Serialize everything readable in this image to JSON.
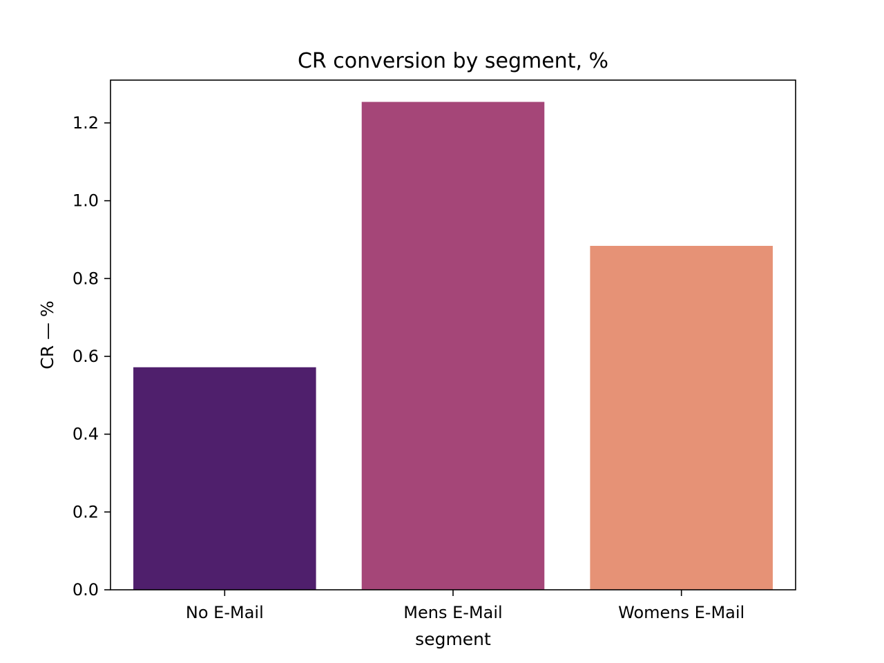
{
  "chart_data": {
    "type": "bar",
    "title": "CR conversion by segment, %",
    "xlabel": "segment",
    "ylabel": "CR — %",
    "categories": [
      "No E-Mail",
      "Mens E-Mail",
      "Womens E-Mail"
    ],
    "values": [
      0.572,
      1.254,
      0.884
    ],
    "colors": [
      "#4f1f6c",
      "#a54678",
      "#e69276"
    ],
    "ylim": [
      0,
      1.31
    ],
    "yticks": [
      0.0,
      0.2,
      0.4,
      0.6,
      0.8,
      1.0,
      1.2
    ],
    "ytick_labels": [
      "0.0",
      "0.2",
      "0.4",
      "0.6",
      "0.8",
      "1.0",
      "1.2"
    ],
    "grid": false,
    "legend": "none"
  }
}
